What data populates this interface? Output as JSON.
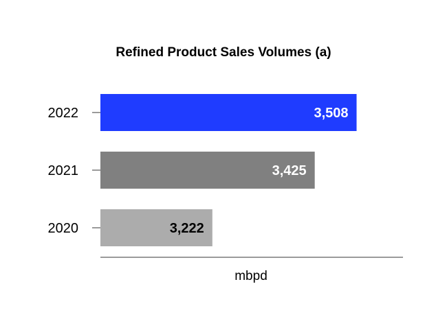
{
  "chart_data": {
    "type": "bar",
    "orientation": "horizontal",
    "title": "Refined Product Sales Volumes (a)",
    "xlabel": "mbpd",
    "ylabel": "",
    "categories": [
      "2022",
      "2021",
      "2020"
    ],
    "values": [
      3508,
      3425,
      3222
    ],
    "value_labels": [
      "3,508",
      "3,425",
      "3,222"
    ],
    "xlim": [
      3000,
      3600
    ],
    "grid": false,
    "legend": "none",
    "colors": {
      "bars": [
        "#1f3cff",
        "#808080",
        "#acacac"
      ],
      "value_label_colors": [
        "#ffffff",
        "#ffffff",
        "#000000"
      ],
      "axis": "#9a9a9a",
      "text": "#000000"
    }
  }
}
